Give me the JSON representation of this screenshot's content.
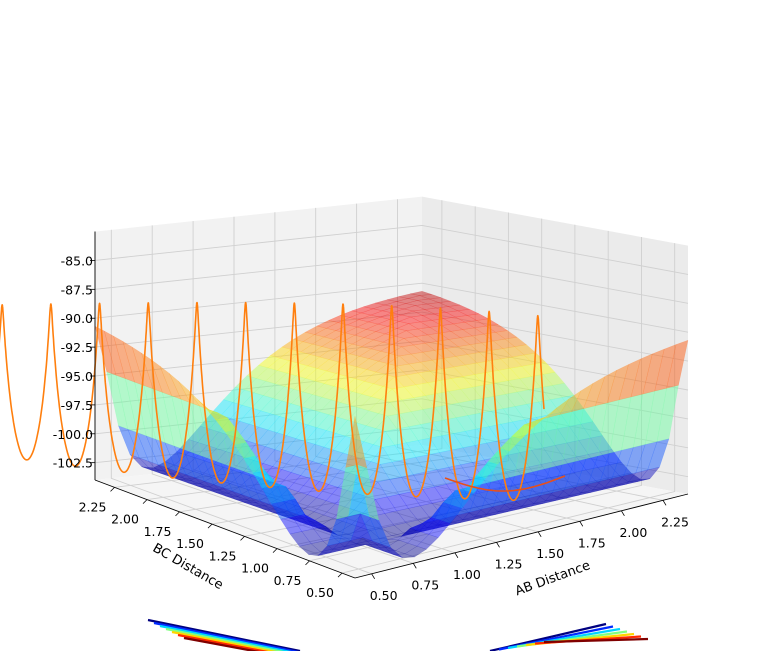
{
  "chart_data": {
    "type": "surface3d",
    "title": "",
    "xlabel": "AB Distance",
    "ylabel": "BC Distance",
    "zlabel": "",
    "x_ticks": [
      "0.50",
      "0.75",
      "1.00",
      "1.25",
      "1.50",
      "1.75",
      "2.00",
      "2.25"
    ],
    "y_ticks": [
      "0.50",
      "0.75",
      "1.00",
      "1.25",
      "1.50",
      "1.75",
      "2.00",
      "2.25"
    ],
    "z_ticks": [
      "-85.0",
      "-87.5",
      "-90.0",
      "-92.5",
      "-95.0",
      "-97.5",
      "-100.0",
      "-102.5"
    ],
    "xlim": [
      0.4,
      2.4
    ],
    "ylim": [
      0.4,
      2.4
    ],
    "zlim": [
      -104.0,
      -82.5
    ],
    "surface": {
      "colormap": "jet",
      "alpha": 0.45,
      "z_plateau": -90.0,
      "z_well_min": -103.5,
      "wells": [
        "AB Distance ≈ 0.74 (along BC)",
        "BC Distance ≈ 0.74 (along AB)"
      ]
    },
    "series": [
      {
        "name": "trajectory",
        "color": "#ff7f0e",
        "kind": "oscillating line"
      }
    ],
    "floor_contours": {
      "colormap": "jet",
      "line_count": 7
    }
  }
}
